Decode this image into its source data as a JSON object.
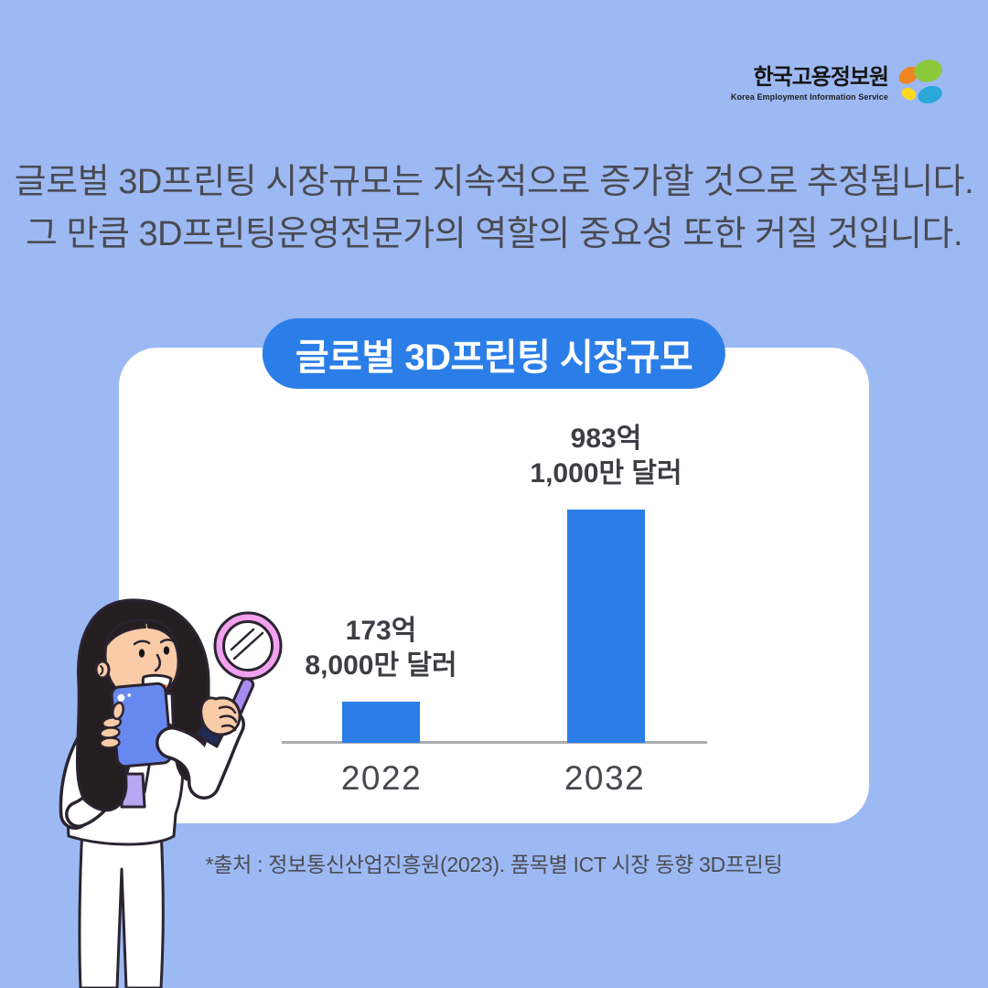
{
  "logo": {
    "title": "한국고용정보원",
    "subtitle": "Korea Employment Information Service"
  },
  "intro": {
    "line1": "글로벌 3D프린팅 시장규모는 지속적으로 증가할 것으로 추정됩니다.",
    "line2": "그 만큼 3D프린팅운영전문가의 역할의 중요성 또한 커질 것입니다."
  },
  "chart_card": {
    "title": "글로벌 3D프린팅 시장규모",
    "source": "*출처 : 정보통신산업진흥원(2023). 품목별 ICT 시장 동향 3D프린팅"
  },
  "chart_data": {
    "type": "bar",
    "title": "글로벌 3D프린팅 시장규모",
    "categories": [
      "2022",
      "2032"
    ],
    "values": [
      173.8,
      983.1
    ],
    "unit": "억 달러 (hundred-million USD)",
    "value_labels": [
      [
        "173억",
        "8,000만 달러"
      ],
      [
        "983억",
        "1,000만 달러"
      ]
    ],
    "bar_color": "#2B7EE8",
    "ylim": [
      0,
      1000
    ],
    "grid": false,
    "legend": false,
    "axis_line_color": "#ACACB0"
  },
  "colors": {
    "background": "#9DB9F3",
    "card": "#FFFFFF",
    "accent_blue": "#2B7EE8",
    "heading_text": "#494A52",
    "label_text": "#3D3E43",
    "year_text": "#47484E",
    "logo_orange": "#F08621",
    "logo_green": "#8CC83C",
    "logo_yellow": "#FFD91E",
    "logo_teal": "#2BA7D9"
  }
}
